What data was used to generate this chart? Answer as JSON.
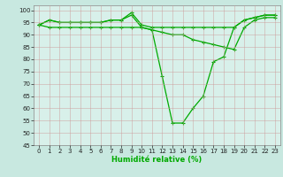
{
  "title": "",
  "xlabel": "Humidité relative (%)",
  "ylabel": "",
  "background_color": "#c8e8e0",
  "plot_bg_color": "#d8f0ea",
  "grid_color": "#cc9999",
  "line_color": "#00aa00",
  "xlim": [
    -0.5,
    23.5
  ],
  "ylim": [
    45,
    102
  ],
  "yticks": [
    45,
    50,
    55,
    60,
    65,
    70,
    75,
    80,
    85,
    90,
    95,
    100
  ],
  "xticks": [
    0,
    1,
    2,
    3,
    4,
    5,
    6,
    7,
    8,
    9,
    10,
    11,
    12,
    13,
    14,
    15,
    16,
    17,
    18,
    19,
    20,
    21,
    22,
    23
  ],
  "series": [
    [
      94,
      96,
      95,
      95,
      95,
      95,
      95,
      96,
      96,
      99,
      94,
      93,
      93,
      93,
      93,
      93,
      93,
      93,
      93,
      93,
      96,
      97,
      98,
      98
    ],
    [
      94,
      96,
      95,
      95,
      95,
      95,
      95,
      96,
      96,
      98,
      93,
      92,
      73,
      54,
      54,
      60,
      65,
      79,
      81,
      93,
      96,
      97,
      98,
      98
    ],
    [
      94,
      93,
      93,
      93,
      93,
      93,
      93,
      93,
      93,
      93,
      93,
      92,
      91,
      90,
      90,
      88,
      87,
      86,
      85,
      84,
      93,
      96,
      97,
      97
    ]
  ],
  "xlabel_fontsize": 6,
  "tick_fontsize": 5,
  "line_width": 0.9,
  "marker_size": 2.5,
  "figsize": [
    3.2,
    2.0
  ],
  "dpi": 100
}
